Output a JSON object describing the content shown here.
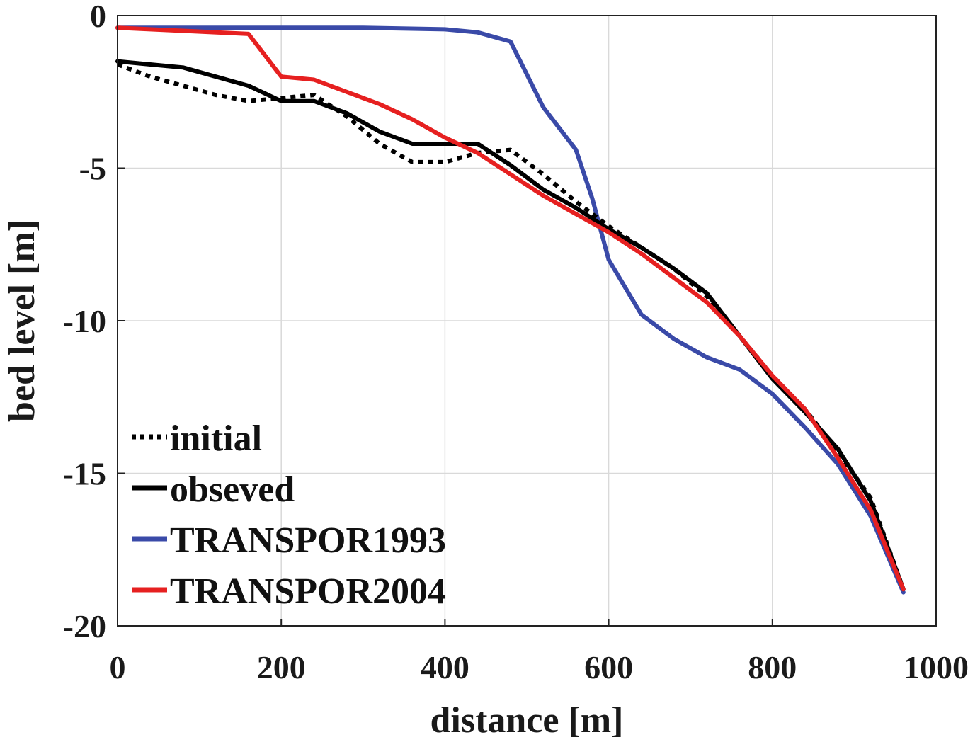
{
  "chart_data": {
    "type": "line",
    "title": "",
    "xlabel": "distance [m]",
    "ylabel": "bed level [m]",
    "xlim": [
      0,
      1000
    ],
    "ylim": [
      -20,
      0
    ],
    "xticks": [
      0,
      200,
      400,
      600,
      800,
      1000
    ],
    "yticks": [
      0,
      -5,
      -10,
      -15,
      -20
    ],
    "xtick_labels": [
      "0",
      "200",
      "400",
      "600",
      "800",
      "1000"
    ],
    "ytick_labels": [
      "0",
      "-5",
      "-10",
      "-15",
      "-20"
    ],
    "grid": true,
    "legend_position": "bottom-left",
    "series": [
      {
        "name": "initial",
        "color": "#000000",
        "style": "dotted",
        "x": [
          0,
          40,
          80,
          120,
          160,
          200,
          240,
          280,
          320,
          360,
          400,
          440,
          480,
          520,
          560,
          600,
          640,
          680,
          720,
          760,
          800,
          840,
          880,
          920,
          960
        ],
        "y": [
          -1.6,
          -2.0,
          -2.3,
          -2.6,
          -2.8,
          -2.7,
          -2.6,
          -3.3,
          -4.2,
          -4.8,
          -4.8,
          -4.5,
          -4.4,
          -5.2,
          -6.1,
          -6.9,
          -7.6,
          -8.3,
          -9.2,
          -10.5,
          -11.8,
          -12.9,
          -14.3,
          -15.8,
          -18.8
        ]
      },
      {
        "name": "obseved",
        "color": "#000000",
        "style": "solid",
        "x": [
          0,
          40,
          80,
          120,
          160,
          200,
          240,
          280,
          320,
          360,
          400,
          440,
          480,
          520,
          560,
          600,
          640,
          680,
          720,
          760,
          800,
          840,
          880,
          920,
          960
        ],
        "y": [
          -1.5,
          -1.6,
          -1.7,
          -2.0,
          -2.3,
          -2.8,
          -2.8,
          -3.2,
          -3.8,
          -4.2,
          -4.2,
          -4.2,
          -4.9,
          -5.7,
          -6.3,
          -7.0,
          -7.6,
          -8.3,
          -9.1,
          -10.5,
          -11.9,
          -13.0,
          -14.2,
          -15.9,
          -18.8
        ]
      },
      {
        "name": "TRANSPOR1993",
        "color": "#3a4aa8",
        "style": "solid",
        "x": [
          0,
          200,
          300,
          400,
          440,
          480,
          520,
          560,
          580,
          600,
          640,
          680,
          720,
          760,
          800,
          840,
          880,
          920,
          960
        ],
        "y": [
          -0.4,
          -0.4,
          -0.4,
          -0.45,
          -0.55,
          -0.85,
          -3.0,
          -4.4,
          -6.0,
          -8.0,
          -9.8,
          -10.6,
          -11.2,
          -11.6,
          -12.4,
          -13.5,
          -14.7,
          -16.4,
          -18.9
        ]
      },
      {
        "name": "TRANSPOR2004",
        "color": "#e62020",
        "style": "solid",
        "x": [
          0,
          80,
          160,
          200,
          240,
          280,
          320,
          360,
          400,
          440,
          480,
          520,
          560,
          600,
          640,
          680,
          720,
          760,
          800,
          840,
          880,
          920,
          960
        ],
        "y": [
          -0.4,
          -0.5,
          -0.6,
          -2.0,
          -2.1,
          -2.5,
          -2.9,
          -3.4,
          -4.0,
          -4.5,
          -5.2,
          -5.9,
          -6.5,
          -7.1,
          -7.8,
          -8.6,
          -9.4,
          -10.5,
          -11.8,
          -12.9,
          -14.5,
          -16.2,
          -18.8
        ]
      }
    ]
  }
}
